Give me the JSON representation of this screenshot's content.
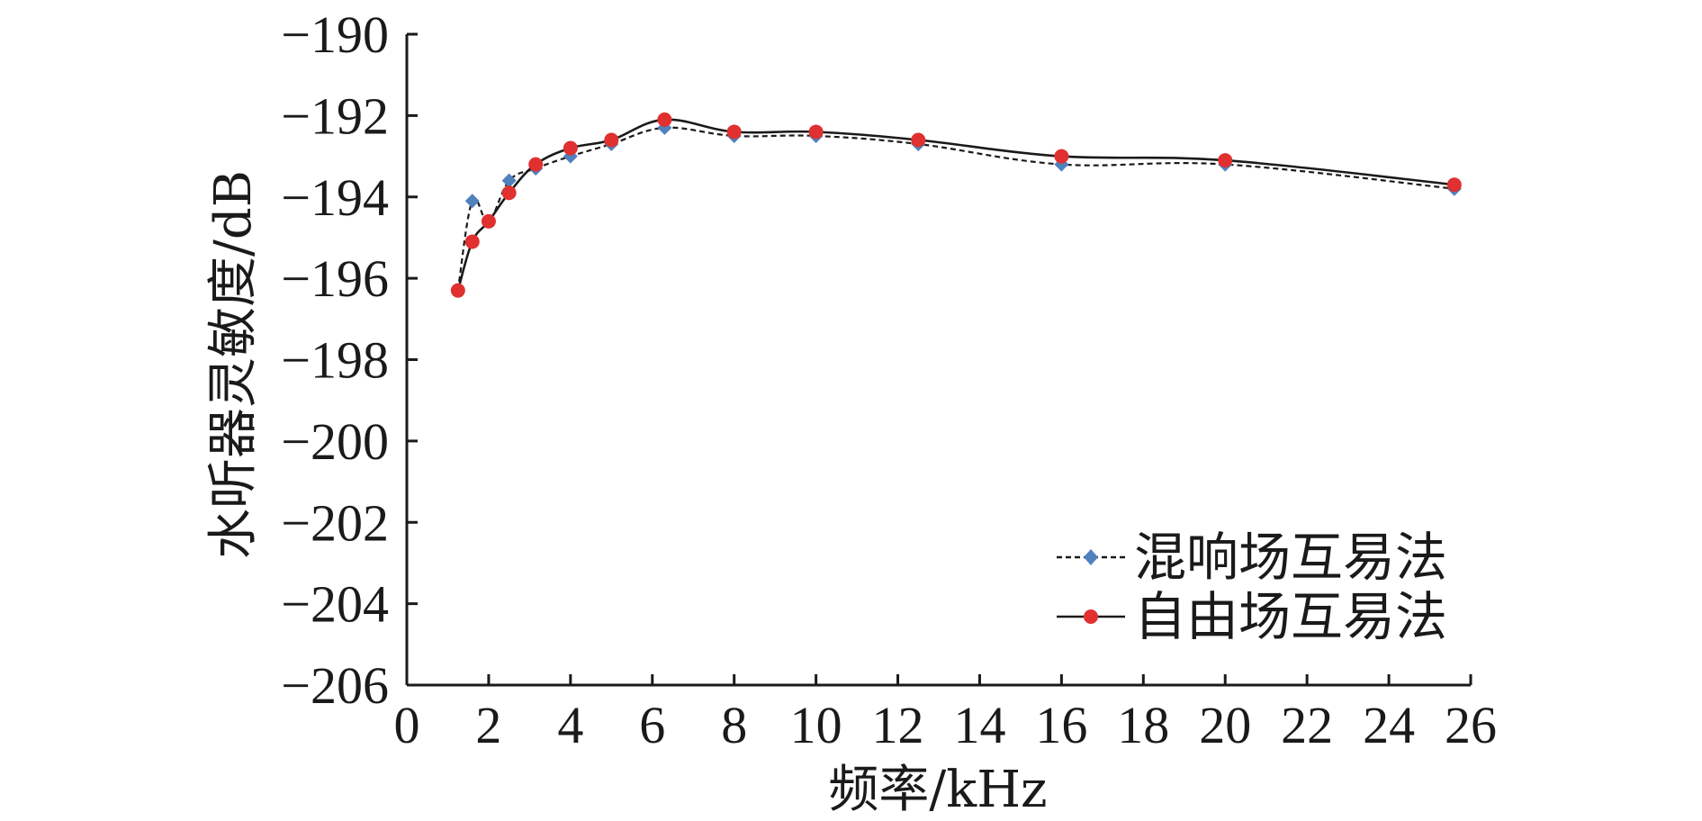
{
  "chart_data": {
    "type": "line",
    "xlabel": "频率/kHz",
    "ylabel": "水听器灵敏度/dB",
    "xlim": [
      0,
      26
    ],
    "ylim": [
      -206,
      -190
    ],
    "x_ticks": [
      0,
      2,
      4,
      6,
      8,
      10,
      12,
      14,
      16,
      18,
      20,
      22,
      24,
      26
    ],
    "y_ticks": [
      -190,
      -192,
      -194,
      -196,
      -198,
      -200,
      -202,
      -204,
      -206
    ],
    "x_tick_labels": [
      "0",
      "2",
      "4",
      "6",
      "8",
      "10",
      "12",
      "14",
      "16",
      "18",
      "20",
      "22",
      "24",
      "26"
    ],
    "y_tick_labels": [
      "−190",
      "−192",
      "−194",
      "−196",
      "−198",
      "−200",
      "−202",
      "−204",
      "−206"
    ],
    "grid": false,
    "legend_position": "bottom-right",
    "series": [
      {
        "name": "混响场互易法",
        "line_style": "dashed",
        "marker": "diamond",
        "color": "#4f81bd",
        "line_color": "#1a1a1a",
        "x": [
          1.25,
          1.6,
          2.0,
          2.5,
          3.15,
          4.0,
          5.0,
          6.3,
          8.0,
          10.0,
          12.5,
          16.0,
          20.0,
          25.6
        ],
        "y": [
          -196.3,
          -194.1,
          -194.6,
          -193.6,
          -193.3,
          -193.0,
          -192.7,
          -192.3,
          -192.5,
          -192.5,
          -192.7,
          -193.2,
          -193.2,
          -193.8
        ]
      },
      {
        "name": "自由场互易法",
        "line_style": "solid",
        "marker": "circle",
        "color": "#e03030",
        "line_color": "#1a1a1a",
        "x": [
          1.25,
          1.6,
          2.0,
          2.5,
          3.15,
          4.0,
          5.0,
          6.3,
          8.0,
          10.0,
          12.5,
          16.0,
          20.0,
          25.6
        ],
        "y": [
          -196.3,
          -195.1,
          -194.6,
          -193.9,
          -193.2,
          -192.8,
          -192.6,
          -192.1,
          -192.4,
          -192.4,
          -192.6,
          -193.0,
          -193.1,
          -193.7
        ]
      }
    ]
  }
}
